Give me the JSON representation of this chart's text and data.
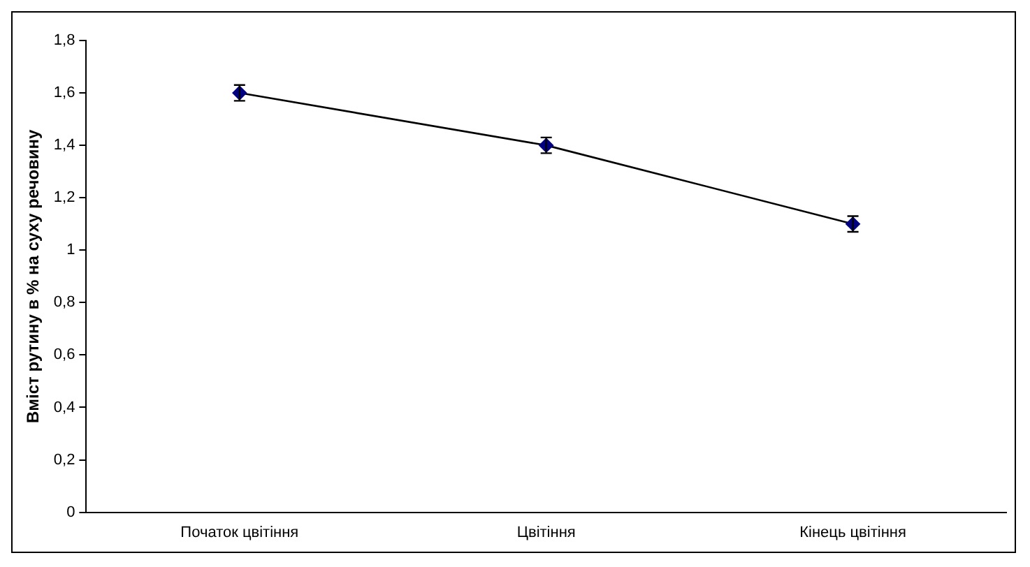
{
  "chart_data": {
    "type": "line",
    "ylabel": "Вміст рутину в % на суху речовину",
    "categories": [
      "Початок цвітіння",
      "Цвітіння",
      "Кінець цвітіння"
    ],
    "series": [
      {
        "color": "#000080",
        "values": [
          1.6,
          1.4,
          1.1
        ],
        "errors": [
          0.03,
          0.03,
          0.03
        ]
      }
    ],
    "ylim": [
      0,
      1.8
    ],
    "yticks": [
      0,
      {
        "value": 0.2,
        "label": "0,2"
      },
      {
        "value": 0.4,
        "label": "0,4"
      },
      {
        "value": 0.6,
        "label": "0,6"
      },
      {
        "value": 0.8,
        "label": "0,8"
      },
      1,
      {
        "value": 1.2,
        "label": "1,2"
      },
      {
        "value": 1.4,
        "label": "1,4"
      },
      {
        "value": 1.6,
        "label": "1,6"
      },
      {
        "value": 1.8,
        "label": "1,8"
      }
    ],
    "grid": false,
    "legend": false,
    "marker": "diamond",
    "line_style": "solid"
  }
}
